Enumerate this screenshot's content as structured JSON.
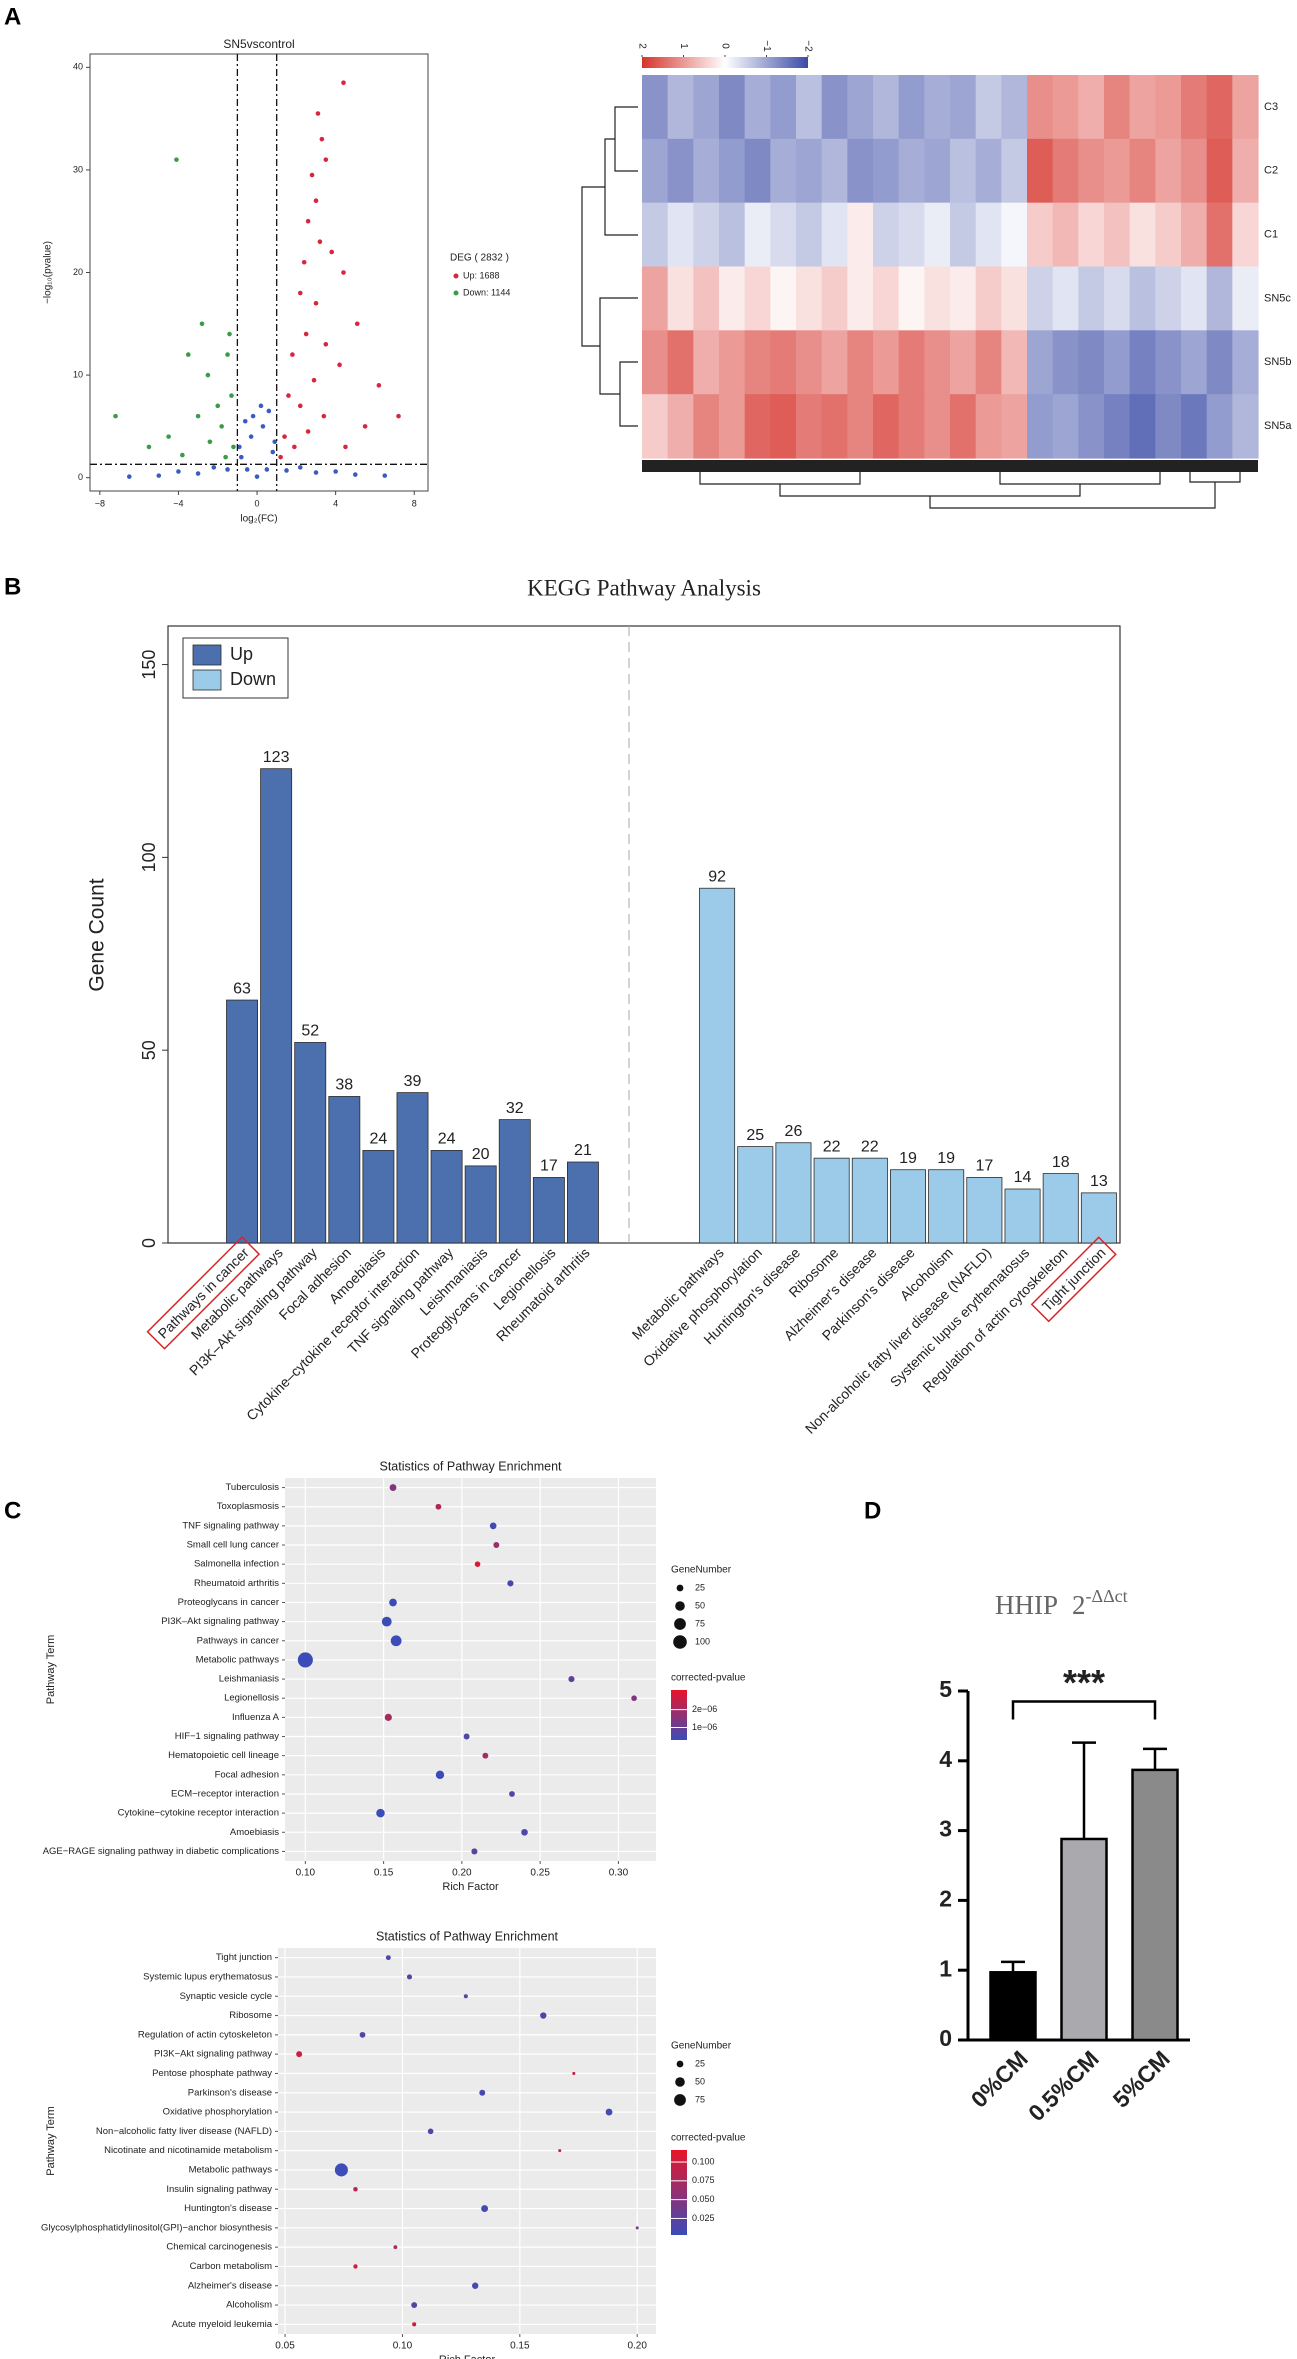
{
  "chart_data": [
    {
      "type": "scatter",
      "panel": "A",
      "title": "SN5vscontrol",
      "x_label": "log₂(FC)",
      "y_label": "−log₁₀(pvalue)",
      "xlim": [
        -8.5,
        8.7
      ],
      "ylim": [
        -1.3,
        41.3
      ],
      "xticks": [
        {
          "value": -8,
          "label": "−8"
        },
        {
          "value": -4,
          "label": "−4"
        },
        0,
        4,
        8
      ],
      "yticks": [
        0,
        10,
        20,
        30,
        40
      ],
      "vlines": [
        -1,
        1
      ],
      "hline": 1.3,
      "legend_title": "DEG ( 2832 )",
      "series": [
        {
          "color": "#3b5bc4",
          "x": [
            0,
            -0.5,
            0.5,
            -0.8,
            0.8,
            -0.3,
            0.3,
            -1.5,
            1.5,
            -3,
            3,
            -5,
            5,
            0.6,
            -0.6,
            2.2,
            -2.2,
            -0.9,
            0.9,
            -4,
            4,
            -6.5,
            6.5,
            0.2,
            -0.2
          ],
          "y": [
            0.1,
            0.8,
            0.8,
            2,
            2.5,
            4,
            5,
            0.8,
            0.7,
            0.4,
            0.5,
            0.2,
            0.3,
            6.5,
            5.5,
            1,
            1,
            3,
            3.5,
            0.6,
            0.6,
            0.1,
            0.2,
            7,
            6
          ]
        },
        {
          "name": "Up: 1688",
          "color": "#d7263d",
          "x": [
            4.4,
            3.1,
            3.3,
            3.5,
            2.8,
            3.0,
            2.6,
            3.2,
            2.4,
            3.8,
            4.4,
            2.2,
            3,
            5.1,
            2.5,
            3.5,
            1.8,
            4.2,
            6.2,
            2.9,
            1.6,
            2.2,
            3.4,
            5.5,
            7.2,
            1.4,
            2.6,
            1.9,
            4.5,
            1.2
          ],
          "y": [
            38.5,
            35.5,
            33,
            31,
            29.5,
            27,
            25,
            23,
            21,
            22,
            20,
            18,
            17,
            15,
            14,
            13,
            12,
            11,
            9,
            9.5,
            8,
            7,
            6,
            5,
            6,
            4,
            4.5,
            3,
            3,
            2
          ]
        },
        {
          "name": "Down: 1144",
          "color": "#3a9b4a",
          "x": [
            -4.1,
            -1.5,
            -2.5,
            -3.5,
            -7.2,
            -1.3,
            -2,
            -1.8,
            -3,
            -4.5,
            -1.2,
            -2.4,
            -5.5,
            -1.6,
            -3.8,
            -2.8,
            -1.4
          ],
          "y": [
            31,
            12,
            10,
            12,
            6,
            8,
            7,
            5,
            6,
            4,
            3,
            3.5,
            3,
            2,
            2.2,
            15,
            14
          ]
        }
      ]
    },
    {
      "type": "heatmap",
      "rows": [
        "C3",
        "C2",
        "C1",
        "SN5c",
        "SN5b",
        "SN5a"
      ],
      "values": [
        [
          -1.2,
          -0.8,
          -1.0,
          -1.3,
          -0.9,
          -1.1,
          -0.7,
          -1.2,
          -1.0,
          -0.8,
          -1.1,
          -0.9,
          -1.0,
          -0.6,
          -0.8,
          1.1,
          1.0,
          0.8,
          1.2,
          0.9,
          1.0,
          1.3,
          1.5,
          0.9
        ],
        [
          -1.0,
          -1.2,
          -0.9,
          -1.1,
          -1.3,
          -0.9,
          -1.0,
          -0.8,
          -1.2,
          -1.1,
          -0.9,
          -1.0,
          -0.7,
          -0.9,
          -0.6,
          1.6,
          1.3,
          1.1,
          1.0,
          1.2,
          0.9,
          1.1,
          1.6,
          0.8
        ],
        [
          -0.6,
          -0.3,
          -0.5,
          -0.7,
          -0.2,
          -0.4,
          -0.6,
          -0.3,
          0.2,
          -0.5,
          -0.4,
          -0.2,
          -0.6,
          -0.3,
          -0.1,
          0.5,
          0.7,
          0.4,
          0.6,
          0.3,
          0.5,
          0.8,
          1.4,
          0.4
        ],
        [
          0.9,
          0.3,
          0.6,
          0.2,
          0.4,
          0.1,
          0.3,
          0.5,
          0.2,
          0.4,
          0.1,
          0.3,
          0.2,
          0.5,
          0.3,
          -0.5,
          -0.3,
          -0.6,
          -0.4,
          -0.7,
          -0.5,
          -0.3,
          -0.8,
          -0.2
        ],
        [
          1.1,
          1.4,
          0.8,
          1.0,
          1.2,
          1.3,
          1.1,
          0.9,
          1.2,
          1.0,
          1.3,
          1.1,
          0.9,
          1.2,
          0.7,
          -1.0,
          -1.2,
          -1.3,
          -1.1,
          -1.4,
          -1.2,
          -1.0,
          -1.3,
          -0.9
        ],
        [
          0.5,
          0.8,
          1.2,
          1.0,
          1.5,
          1.6,
          1.3,
          1.4,
          1.2,
          1.5,
          1.3,
          1.1,
          1.4,
          1.0,
          0.9,
          -1.1,
          -1.0,
          -1.2,
          -1.4,
          -1.6,
          -1.3,
          -1.5,
          -1.1,
          -0.8
        ]
      ],
      "zlim": [
        -2,
        2
      ],
      "colorbar_ticks": [
        2,
        1,
        0,
        {
          "value": -1,
          "label": "−1"
        },
        {
          "value": -2,
          "label": "−2"
        }
      ],
      "low_color": "#3a4ba6",
      "mid_color": "#ffffff",
      "high_color": "#d6342c"
    },
    {
      "type": "grouped_bar",
      "panel": "B",
      "title": "KEGG Pathway Analysis",
      "y_label": "Gene Count",
      "ylim": [
        0,
        160
      ],
      "yticks": [
        0,
        50,
        100,
        150
      ],
      "legend": "top-left",
      "series": [
        {
          "name": "Up",
          "color": "#4c6fae",
          "highlight": [
            0
          ],
          "categories": [
            "Pathways in cancer",
            "Metabolic pathways",
            "PI3K–Akt signaling pathway",
            "Focal adhesion",
            "Amoebiasis",
            "Cytokine–cytokine receptor interaction",
            "TNF signaling pathway",
            "Leishmaniasis",
            "Proteoglycans in cancer",
            "Legionellosis",
            "Rheumatoid arthritis"
          ],
          "values": [
            63,
            123,
            52,
            38,
            24,
            39,
            24,
            20,
            32,
            17,
            21
          ]
        },
        {
          "name": "Down",
          "color": "#9ccbea",
          "highlight": [
            10
          ],
          "categories": [
            "Metabolic pathways",
            "Oxidative phosphorylation",
            "Huntington's disease",
            "Ribosome",
            "Alzheimer's disease",
            "Parkinson's disease",
            "Alcoholism",
            "Non-alcoholic fatty liver disease (NAFLD)",
            "Systemic lupus erythematosus",
            "Regulation of actin cytoskeleton",
            "Tight junction"
          ],
          "values": [
            92,
            25,
            26,
            22,
            22,
            19,
            19,
            17,
            14,
            18,
            13
          ]
        }
      ]
    },
    {
      "type": "dot",
      "panel": "C",
      "title": "Statistics of Pathway Enrichment",
      "x_label": "Rich Factor",
      "y_label": "Pathway Term",
      "categories": [
        "Tuberculosis",
        "Toxoplasmosis",
        "TNF signaling pathway",
        "Small cell lung cancer",
        "Salmonella infection",
        "Rheumatoid arthritis",
        "Proteoglycans in cancer",
        "PI3K–Akt signaling pathway",
        "Pathways in cancer",
        "Metabolic pathways",
        "Leishmaniasis",
        "Legionellosis",
        "Influenza A",
        "HIF−1 signaling pathway",
        "Hematopoietic cell lineage",
        "Focal adhesion",
        "ECM−receptor interaction",
        "Cytokine−cytokine receptor interaction",
        "Amoebiasis",
        "AGE−RAGE signaling pathway in diabetic complications"
      ],
      "x": [
        0.156,
        0.185,
        0.22,
        0.222,
        0.21,
        0.231,
        0.156,
        0.152,
        0.158,
        0.1,
        0.27,
        0.31,
        0.153,
        0.203,
        0.215,
        0.186,
        0.232,
        0.148,
        0.24,
        0.208
      ],
      "sizes": [
        25,
        18,
        24,
        19,
        17,
        21,
        32,
        52,
        63,
        123,
        20,
        17,
        28,
        19,
        19,
        38,
        18,
        39,
        24,
        20
      ],
      "pvalues": [
        1.4e-06,
        2.2e-06,
        4e-07,
        1.8e-06,
        2.8e-06,
        5e-07,
        3e-07,
        2e-07,
        1e-07,
        1e-08,
        9e-07,
        1.5e-06,
        2.1e-06,
        6e-07,
        2e-06,
        2e-07,
        7e-07,
        2e-07,
        6e-07,
        8e-07
      ],
      "xlim": [
        0.087,
        0.324
      ],
      "xticks": [
        {
          "value": 0.1,
          "label": "0.10"
        },
        0.15,
        {
          "value": 0.2,
          "label": "0.20"
        },
        0.25,
        {
          "value": 0.3,
          "label": "0.30"
        }
      ],
      "size_legend_title": "GeneNumber",
      "size_ticks": [
        25,
        50,
        75,
        100
      ],
      "color_legend_title": "corrected-pvalue",
      "clim": [
        3e-07,
        3.1e-06
      ],
      "cticks": [
        {
          "value": 2e-06,
          "label": "2e−06"
        },
        {
          "value": 1e-06,
          "label": "1e−06"
        }
      ],
      "low_color": "#3b4cb8",
      "high_color": "#e8142a"
    },
    {
      "type": "dot",
      "title": "Statistics of Pathway Enrichment",
      "x_label": "Rich Factor",
      "y_label": "Pathway Term",
      "categories": [
        "Tight junction",
        "Systemic lupus erythematosus",
        "Synaptic vesicle cycle",
        "Ribosome",
        "Regulation of actin cytoskeleton",
        "PI3K−Akt signaling pathway",
        "Pentose phosphate pathway",
        "Parkinson's disease",
        "Oxidative phosphorylation",
        "Non−alcoholic fatty liver disease (NAFLD)",
        "Nicotinate and nicotinamide metabolism",
        "Metabolic pathways",
        "Insulin signaling pathway",
        "Huntington's disease",
        "Glycosylphosphatidylinositol(GPI)−anchor biosynthesis",
        "Chemical carcinogenesis",
        "Carbon metabolism",
        "Alzheimer's disease",
        "Alcoholism",
        "Acute myeloid leukemia"
      ],
      "x": [
        0.094,
        0.103,
        0.127,
        0.16,
        0.083,
        0.056,
        0.173,
        0.134,
        0.188,
        0.112,
        0.167,
        0.074,
        0.08,
        0.135,
        0.2,
        0.097,
        0.08,
        0.131,
        0.105,
        0.105
      ],
      "sizes": [
        13,
        14,
        9,
        22,
        18,
        19,
        5,
        19,
        25,
        17,
        5,
        92,
        11,
        26,
        5,
        8,
        10,
        22,
        19,
        9
      ],
      "pvalues": [
        0.012,
        0.02,
        0.02,
        0.015,
        0.02,
        0.1,
        0.1,
        0.01,
        0.008,
        0.02,
        0.1,
        0.004,
        0.085,
        0.008,
        0.04,
        0.07,
        0.1,
        0.01,
        0.02,
        0.1
      ],
      "xlim": [
        0.047,
        0.208
      ],
      "xticks": [
        {
          "value": 0.05,
          "label": "0.05"
        },
        {
          "value": 0.1,
          "label": "0.10"
        },
        0.15,
        {
          "value": 0.2,
          "label": "0.20"
        }
      ],
      "size_legend_title": "GeneNumber",
      "size_ticks": [
        25,
        50,
        75
      ],
      "color_legend_title": "corrected-pvalue",
      "clim": [
        0.003,
        0.116
      ],
      "cticks": [
        {
          "value": 0.1,
          "label": "0.100"
        },
        0.075,
        {
          "value": 0.05,
          "label": "0.050"
        },
        0.025
      ],
      "low_color": "#3b4cb8",
      "high_color": "#e8142a"
    },
    {
      "type": "bar",
      "panel": "D",
      "title": "HHIP",
      "formula_base": "2",
      "formula_exp": "-ΔΔct",
      "categories": [
        "0%CM",
        "0.5%CM",
        "5%CM"
      ],
      "values": [
        0.97,
        2.88,
        3.87
      ],
      "errors": [
        0.15,
        1.38,
        0.3
      ],
      "colors": [
        "#000000",
        "#a9a9ae",
        "#8a8a8a"
      ],
      "ylim": [
        0,
        5
      ],
      "yticks": [
        0,
        1,
        2,
        3,
        4,
        5
      ],
      "significance": {
        "from": 0,
        "to": 2,
        "y": 4.85,
        "label": "***"
      }
    }
  ]
}
